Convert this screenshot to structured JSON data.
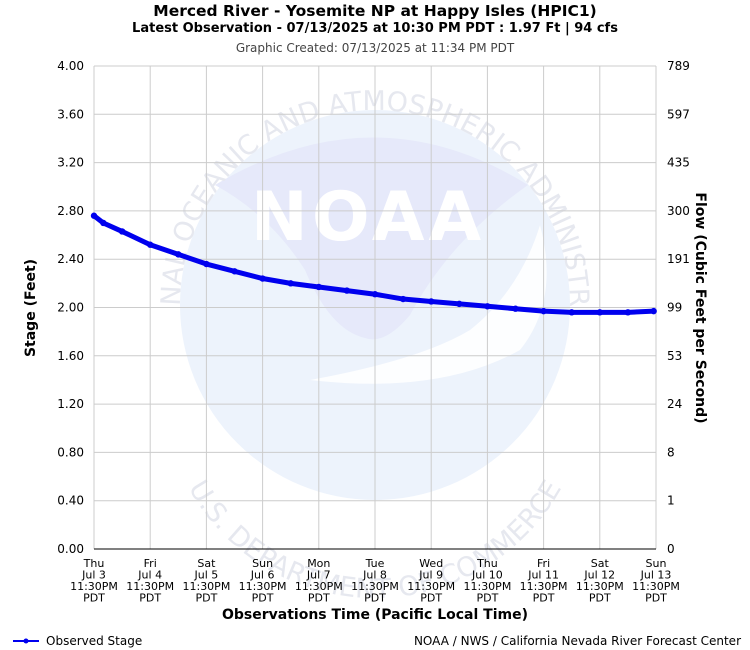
{
  "header": {
    "title": "Merced River - Yosemite NP at Happy Isles (HPIC1)",
    "subtitle": "Latest Observation - 07/13/2025 at 10:30 PM PDT : 1.97 Ft | 94 cfs",
    "created": "Graphic Created: 07/13/2025 at 11:34 PM PDT"
  },
  "watermark": {
    "logo_text": "NOAA",
    "ring_text": "NATIONAL OCEANIC AND ATMOSPHERIC ADMINISTRATION",
    "bottom_text": "U.S. DEPARTMENT OF COMMERCE"
  },
  "footer": {
    "legend_label": "Observed Stage",
    "credit": "NOAA / NWS / California Nevada River Forecast Center"
  },
  "colors": {
    "series": "#0000ee",
    "grid": "#cccccc",
    "watermark": "#e6ebfa"
  },
  "chart_data": {
    "type": "line",
    "title": "Merced River - Yosemite NP at Happy Isles (HPIC1)",
    "xlabel": "Observations Time (Pacific Local Time)",
    "ylabel": "Stage (Feet)",
    "y2label": "Flow (Cubic Feet per Second)",
    "ylim": [
      0,
      4
    ],
    "y_ticks": [
      "0.00",
      "0.40",
      "0.80",
      "1.20",
      "1.60",
      "2.00",
      "2.40",
      "2.80",
      "3.20",
      "3.60",
      "4.00"
    ],
    "y2_ticks": [
      "0",
      "1",
      "8",
      "24",
      "53",
      "99",
      "191",
      "300",
      "435",
      "597",
      "789"
    ],
    "x_ticks": [
      {
        "day": "Thu",
        "date": "Jul 3",
        "time": "11:30PM",
        "tz": "PDT"
      },
      {
        "day": "Fri",
        "date": "Jul 4",
        "time": "11:30PM",
        "tz": "PDT"
      },
      {
        "day": "Sat",
        "date": "Jul 5",
        "time": "11:30PM",
        "tz": "PDT"
      },
      {
        "day": "Sun",
        "date": "Jul 6",
        "time": "11:30PM",
        "tz": "PDT"
      },
      {
        "day": "Mon",
        "date": "Jul 7",
        "time": "11:30PM",
        "tz": "PDT"
      },
      {
        "day": "Tue",
        "date": "Jul 8",
        "time": "11:30PM",
        "tz": "PDT"
      },
      {
        "day": "Wed",
        "date": "Jul 9",
        "time": "11:30PM",
        "tz": "PDT"
      },
      {
        "day": "Thu",
        "date": "Jul 10",
        "time": "11:30PM",
        "tz": "PDT"
      },
      {
        "day": "Fri",
        "date": "Jul 11",
        "time": "11:30PM",
        "tz": "PDT"
      },
      {
        "day": "Sat",
        "date": "Jul 12",
        "time": "11:30PM",
        "tz": "PDT"
      },
      {
        "day": "Sun",
        "date": "Jul 13",
        "time": "11:30PM",
        "tz": "PDT"
      }
    ],
    "grid": true,
    "legend": "bottom-left",
    "series": [
      {
        "name": "Observed Stage",
        "x": [
          "2025-07-03 23:30",
          "2025-07-04 03:30",
          "2025-07-04 11:30",
          "2025-07-04 23:30",
          "2025-07-05 11:30",
          "2025-07-05 23:30",
          "2025-07-06 11:30",
          "2025-07-06 23:30",
          "2025-07-07 11:30",
          "2025-07-07 23:30",
          "2025-07-08 11:30",
          "2025-07-08 23:30",
          "2025-07-09 11:30",
          "2025-07-09 23:30",
          "2025-07-10 11:30",
          "2025-07-10 23:30",
          "2025-07-11 11:30",
          "2025-07-11 23:30",
          "2025-07-12 11:30",
          "2025-07-12 23:30",
          "2025-07-13 11:30",
          "2025-07-13 22:30"
        ],
        "y": [
          2.76,
          2.7,
          2.63,
          2.52,
          2.44,
          2.36,
          2.3,
          2.24,
          2.2,
          2.17,
          2.14,
          2.11,
          2.07,
          2.05,
          2.03,
          2.01,
          1.99,
          1.97,
          1.96,
          1.96,
          1.96,
          1.97
        ]
      }
    ]
  }
}
